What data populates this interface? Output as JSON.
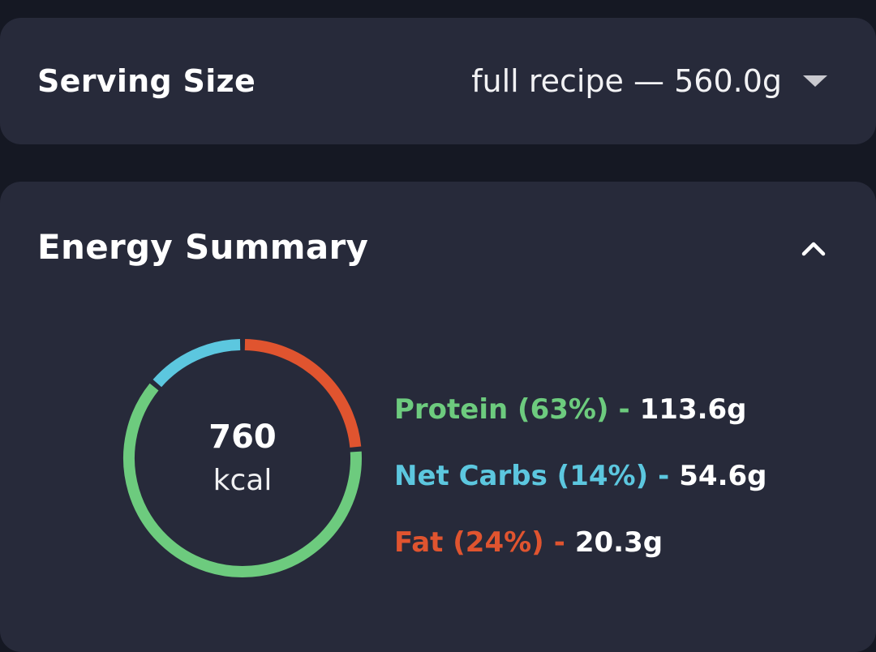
{
  "serving": {
    "title": "Serving Size",
    "value": "full recipe  — 560.0g"
  },
  "energy": {
    "title": "Energy Summary",
    "kcal_value": "760",
    "kcal_unit": "kcal",
    "macros": [
      {
        "name": "Protein (63%)",
        "sep": "-",
        "amount": "113.6g",
        "percent": 63,
        "color": "#6dcb7e"
      },
      {
        "name": "Net Carbs (14%)",
        "sep": "-",
        "amount": "54.6g",
        "percent": 14,
        "color": "#5cc7df"
      },
      {
        "name": "Fat (24%)",
        "sep": "-",
        "amount": "20.3g",
        "percent": 24,
        "color": "#e0542f"
      }
    ]
  },
  "icons": {
    "serving_dropdown": "caret-down-icon",
    "collapse": "chevron-up-icon"
  }
}
